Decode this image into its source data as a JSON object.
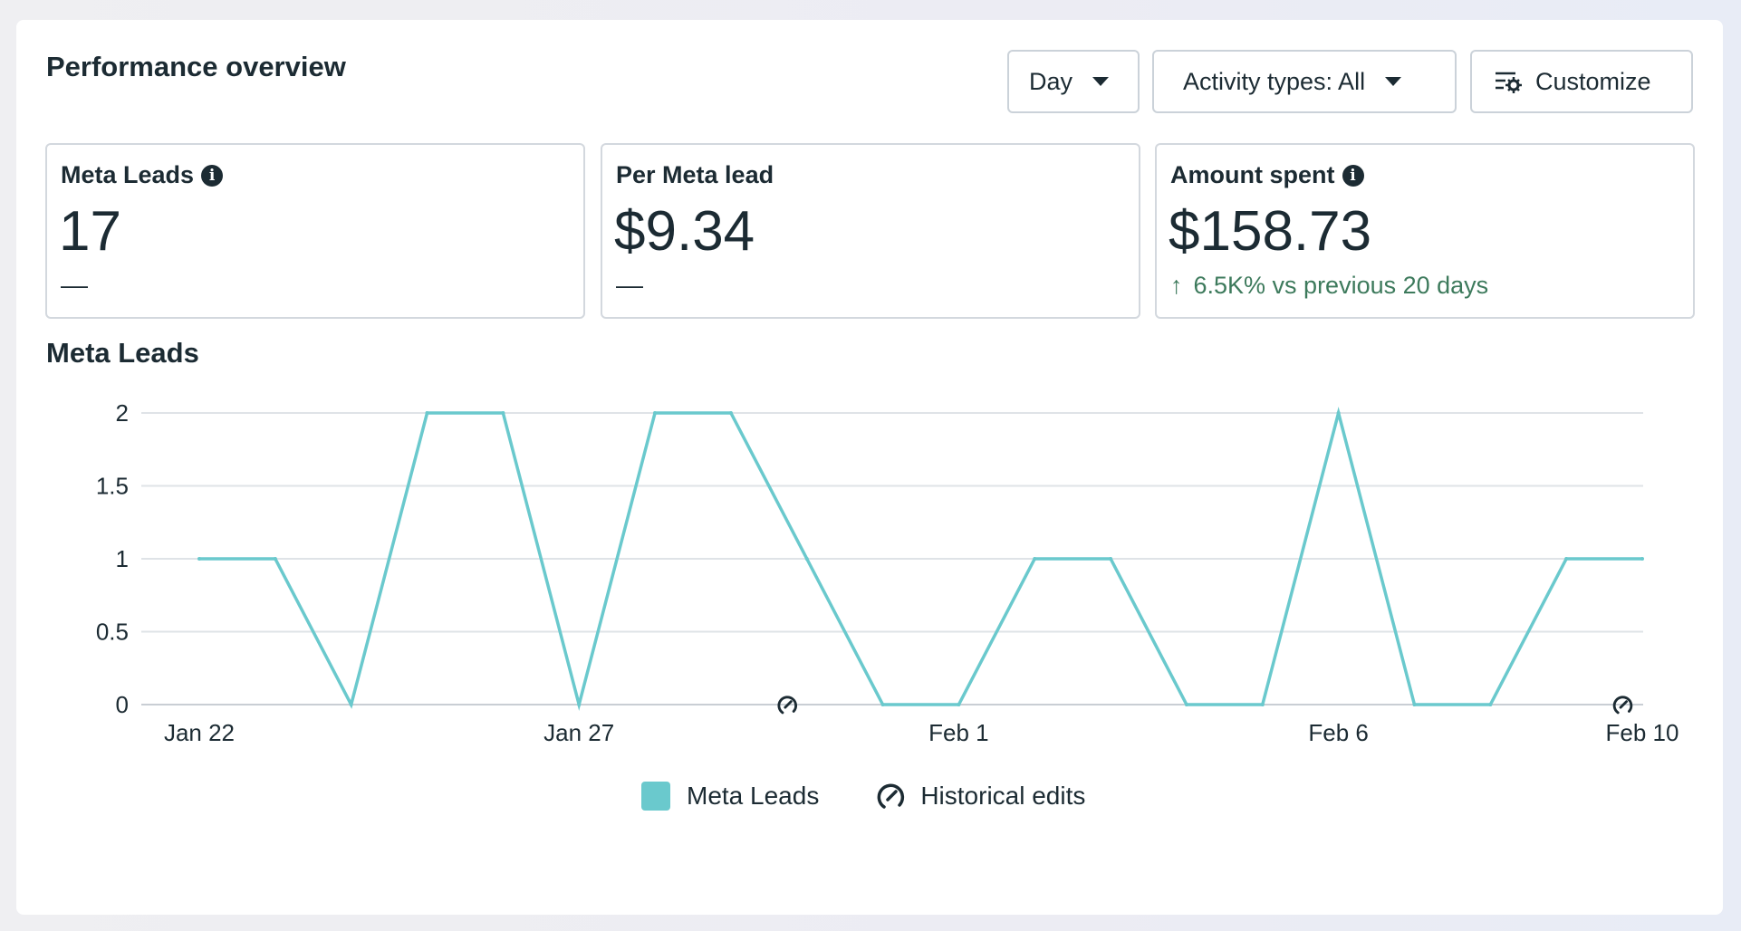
{
  "header": {
    "title": "Performance overview",
    "day_label": "Day",
    "activity_label": "Activity types: All",
    "customize_label": "Customize"
  },
  "metrics": [
    {
      "label": "Meta Leads",
      "value": "17",
      "sub": "––",
      "info": true
    },
    {
      "label": "Per Meta lead",
      "value": "$9.34",
      "sub": "––",
      "info": false
    },
    {
      "label": "Amount spent",
      "value": "$158.73",
      "sub": "6.5K% vs previous 20 days",
      "info": true,
      "trend": "up"
    }
  ],
  "colors": {
    "series": "#6ac9cd",
    "positive": "#3d7a5c",
    "grid": "#dfe3e7",
    "text": "#1c2b33"
  },
  "chart_data": {
    "type": "line",
    "title": "Meta Leads",
    "x": [
      "Jan 22",
      "Jan 23",
      "Jan 24",
      "Jan 25",
      "Jan 26",
      "Jan 27",
      "Jan 28",
      "Jan 29",
      "Jan 30",
      "Jan 31",
      "Feb 1",
      "Feb 2",
      "Feb 3",
      "Feb 4",
      "Feb 5",
      "Feb 6",
      "Feb 7",
      "Feb 8",
      "Feb 9",
      "Feb 10"
    ],
    "x_tick_labels": [
      "Jan 22",
      "Jan 27",
      "Feb 1",
      "Feb 6",
      "Feb 10"
    ],
    "series": [
      {
        "name": "Meta Leads",
        "values": [
          1,
          1,
          0,
          2,
          2,
          0,
          2,
          2,
          1,
          0,
          0,
          1,
          1,
          0,
          0,
          2,
          0,
          0,
          1,
          1
        ]
      }
    ],
    "yticks": [
      "0",
      "0.5",
      "1",
      "1.5",
      "2"
    ],
    "ylim": [
      0,
      2
    ],
    "historical_edits_at": [
      "Jan 30",
      "Feb 10"
    ],
    "legend": [
      "Meta Leads",
      "Historical edits"
    ],
    "grid": true
  }
}
